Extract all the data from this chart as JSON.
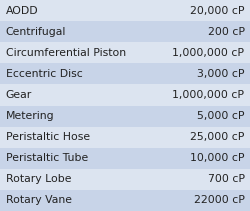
{
  "rows": [
    [
      "AODD",
      "20,000 cP"
    ],
    [
      "Centrifugal",
      "200 cP"
    ],
    [
      "Circumferential Piston",
      "1,000,000 cP"
    ],
    [
      "Eccentric Disc",
      "3,000 cP"
    ],
    [
      "Gear",
      "1,000,000 cP"
    ],
    [
      "Metering",
      "5,000 cP"
    ],
    [
      "Peristaltic Hose",
      "25,000 cP"
    ],
    [
      "Peristaltic Tube",
      "10,000 cP"
    ],
    [
      "Rotary Lobe",
      "700 cP"
    ],
    [
      "Rotary Vane",
      "22000 cP"
    ]
  ],
  "bg_color_light": "#dce4f0",
  "bg_color_dark": "#c8d4e8",
  "text_color": "#222222",
  "font_size": 7.8,
  "fig_bg": "#dce4f0"
}
